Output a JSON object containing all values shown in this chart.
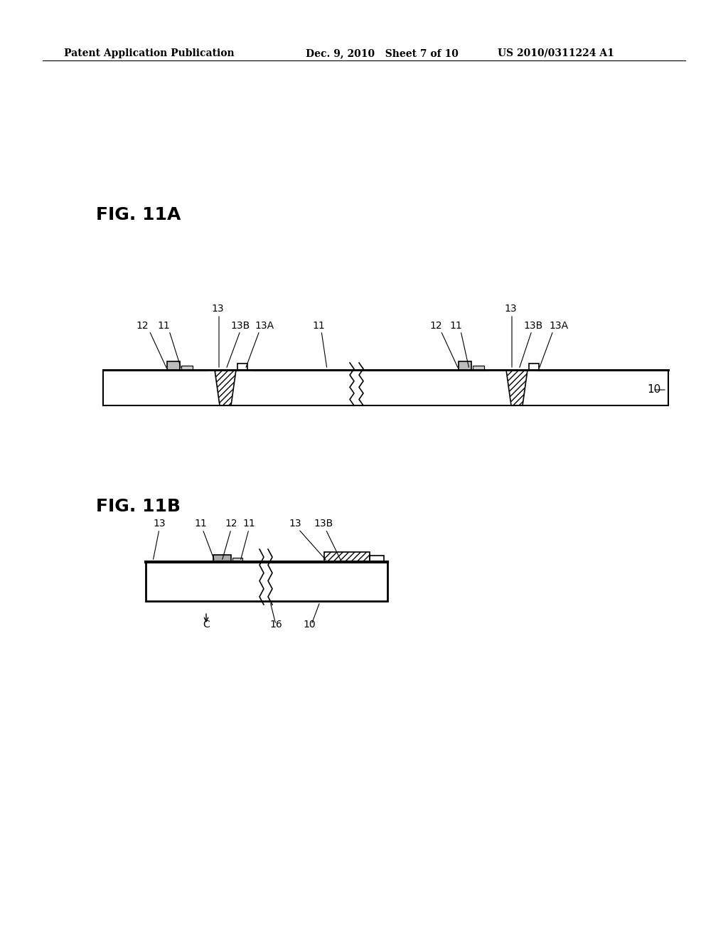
{
  "bg_color": "#ffffff",
  "header_left": "Patent Application Publication",
  "header_mid": "Dec. 9, 2010   Sheet 7 of 10",
  "header_right": "US 2010/0311224 A1",
  "fig_label_11A": "FIG. 11A",
  "fig_label_11B": "FIG. 11B"
}
